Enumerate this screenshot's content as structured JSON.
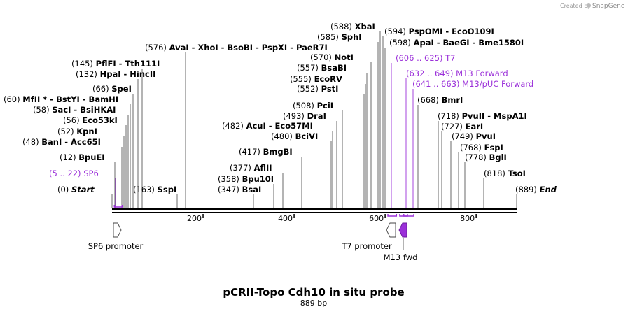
{
  "credit": {
    "prefix": "Created by",
    "brand": "SnapGene"
  },
  "title": "pCRII-Topo Cdh10 in situ probe",
  "subtitle": "889 bp",
  "sequence_length": 889,
  "ticks": [
    "200",
    "400",
    "600",
    "800"
  ],
  "sites": [
    {
      "pos": "(0)",
      "name": "Start",
      "italic": true
    },
    {
      "pos": "(5 .. 22)",
      "name": "SP6",
      "feature": true
    },
    {
      "pos": "(12)",
      "name": "BpuEI"
    },
    {
      "pos": "(48)",
      "name": "BanI  -  Acc65I"
    },
    {
      "pos": "(52)",
      "name": "KpnI"
    },
    {
      "pos": "(56)",
      "name": "Eco53kI"
    },
    {
      "pos": "(58)",
      "name": "SacI  -  BsiHKAI"
    },
    {
      "pos": "(60)",
      "name": "MfII *  -  BstYI  -  BamHI"
    },
    {
      "pos": "(66)",
      "name": "SpeI"
    },
    {
      "pos": "(132)",
      "name": "HpaI  -  HincII"
    },
    {
      "pos": "(145)",
      "name": "PflFI  -  Tth111I"
    },
    {
      "pos": "(163)",
      "name": "SspI"
    },
    {
      "pos": "(576)",
      "name": "AvaI  -  XhoI  -  BsoBI  -  PspXI  -  PaeR7I"
    },
    {
      "pos": "(347)",
      "name": "BsaI"
    },
    {
      "pos": "(358)",
      "name": "Bpu10I"
    },
    {
      "pos": "(377)",
      "name": "AflII"
    },
    {
      "pos": "(417)",
      "name": "BmgBI"
    },
    {
      "pos": "(480)",
      "name": "BciVI"
    },
    {
      "pos": "(482)",
      "name": "AcuI  -  Eco57MI"
    },
    {
      "pos": "(493)",
      "name": "DraI"
    },
    {
      "pos": "(508)",
      "name": "PciI"
    },
    {
      "pos": "(552)",
      "name": "PstI"
    },
    {
      "pos": "(555)",
      "name": "EcoRV"
    },
    {
      "pos": "(557)",
      "name": "BsaBI"
    },
    {
      "pos": "(570)",
      "name": "NotI"
    },
    {
      "pos": "(585)",
      "name": "SphI"
    },
    {
      "pos": "(588)",
      "name": "XbaI"
    },
    {
      "pos": "(594)",
      "name": "PspOMI  -  EcoO109I"
    },
    {
      "pos": "(598)",
      "name": "ApaI  -  BaeGI  -  Bme1580I"
    },
    {
      "pos": "(606 .. 625)",
      "name": "T7",
      "feature": true
    },
    {
      "pos": "(632 .. 649)",
      "name": "M13 Forward",
      "feature": true
    },
    {
      "pos": "(641 .. 663)",
      "name": "M13/pUC Forward",
      "feature": true
    },
    {
      "pos": "(668)",
      "name": "BmrI"
    },
    {
      "pos": "(718)",
      "name": "PvuII  -  MspA1I"
    },
    {
      "pos": "(727)",
      "name": "EarI"
    },
    {
      "pos": "(749)",
      "name": "PvuI"
    },
    {
      "pos": "(768)",
      "name": "FspI"
    },
    {
      "pos": "(778)",
      "name": "BglI"
    },
    {
      "pos": "(818)",
      "name": "TsoI"
    },
    {
      "pos": "(889)",
      "name": "End",
      "italic": true
    }
  ],
  "features": [
    {
      "name": "SP6 promoter",
      "color": "#ffffff"
    },
    {
      "name": "T7 promoter",
      "color": "#ffffff"
    },
    {
      "name": "M13 fwd",
      "color": "#9b30d9"
    }
  ],
  "colors": {
    "feature_text": "#9b30d9",
    "backbone": "#000000",
    "cut_line": "#444444"
  }
}
